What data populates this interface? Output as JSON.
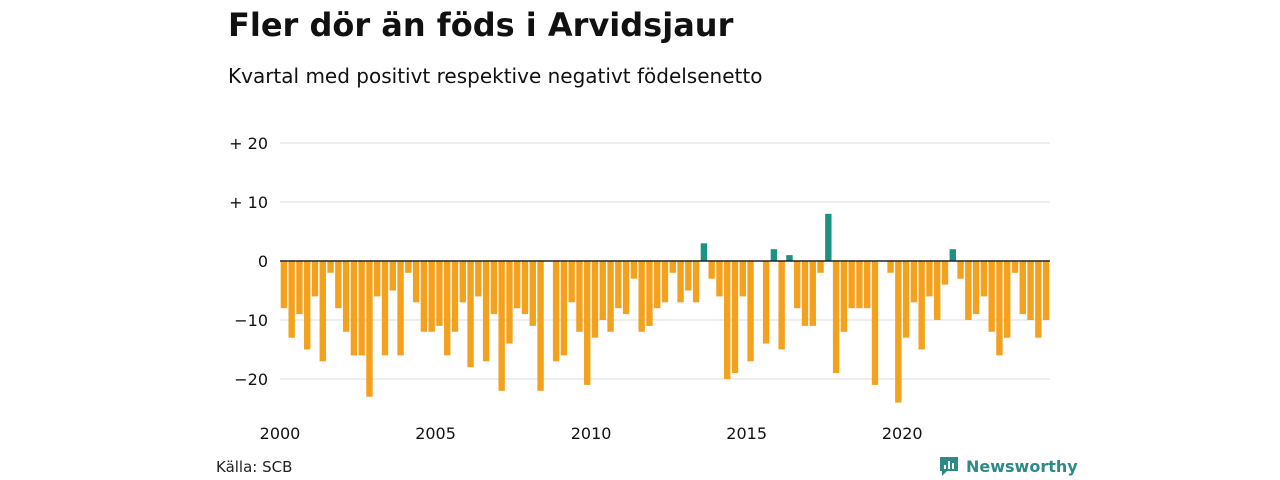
{
  "chart_data": {
    "type": "bar",
    "title": "Fler dör än föds i Arvidsjaur",
    "subtitle": "Kvartal med positivt respektive negativt födelsenetto",
    "xlabel": "",
    "ylabel": "",
    "start": "2000 Q1",
    "values": [
      -8,
      -13,
      -9,
      -15,
      -6,
      -17,
      -2,
      -8,
      -12,
      -16,
      -16,
      -23,
      -6,
      -16,
      -5,
      -16,
      -2,
      -7,
      -12,
      -12,
      -11,
      -16,
      -12,
      -7,
      -18,
      -6,
      -17,
      -9,
      -22,
      -14,
      -8,
      -9,
      -11,
      -22,
      0,
      -17,
      -16,
      -7,
      -12,
      -21,
      -13,
      -10,
      -12,
      -8,
      -9,
      -3,
      -12,
      -11,
      -8,
      -7,
      -2,
      -7,
      -5,
      -7,
      3,
      -3,
      -6,
      -20,
      -19,
      -6,
      -17,
      0,
      -14,
      2,
      -15,
      1,
      -8,
      -11,
      -11,
      -2,
      8,
      -19,
      -12,
      -8,
      -8,
      -8,
      -21,
      0,
      -2,
      -24,
      -13,
      -7,
      -15,
      -6,
      -10,
      -4,
      2,
      -3,
      -10,
      -9,
      -6,
      -12,
      -16,
      -13,
      -2,
      -9,
      -10,
      -13,
      -10
    ],
    "x_ticks": [
      "2000",
      "2005",
      "2010",
      "2015",
      "2020"
    ],
    "y_ticks": [
      "−20",
      "−10",
      "0",
      "+ 10",
      "+ 20"
    ],
    "y_tick_values": [
      -20,
      -10,
      0,
      10,
      20
    ],
    "ylim": [
      -25,
      20
    ],
    "grid": true,
    "legend": "none",
    "colors": {
      "positive": "#1a9284",
      "negative": "#f4a11d"
    }
  },
  "footer": {
    "source": "Källa: SCB",
    "brand": "Newsworthy"
  }
}
